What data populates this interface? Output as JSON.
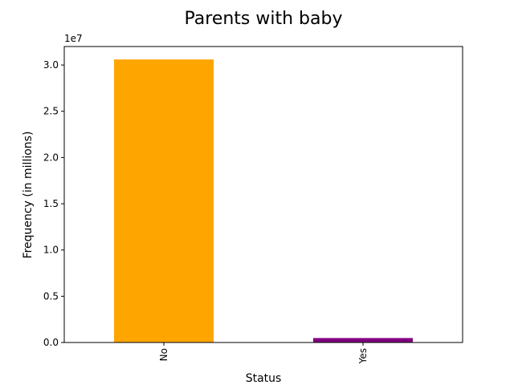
{
  "chart_data": {
    "type": "bar",
    "title": "Parents with baby",
    "xlabel": "Status",
    "ylabel": "Frequency (in millions)",
    "categories": [
      "No",
      "Yes"
    ],
    "values": [
      30600000,
      480000
    ],
    "colors": [
      "#FFA500",
      "#800080"
    ],
    "ylim": [
      0,
      32000000
    ],
    "yticks": [
      0,
      5000000,
      10000000,
      15000000,
      20000000,
      25000000,
      30000000
    ],
    "ytick_labels": [
      "0.0",
      "0.5",
      "1.0",
      "1.5",
      "2.0",
      "2.5",
      "3.0"
    ],
    "offset_label": "1e7",
    "xtick_rotation": "vertical",
    "grid": false,
    "legend": false
  }
}
